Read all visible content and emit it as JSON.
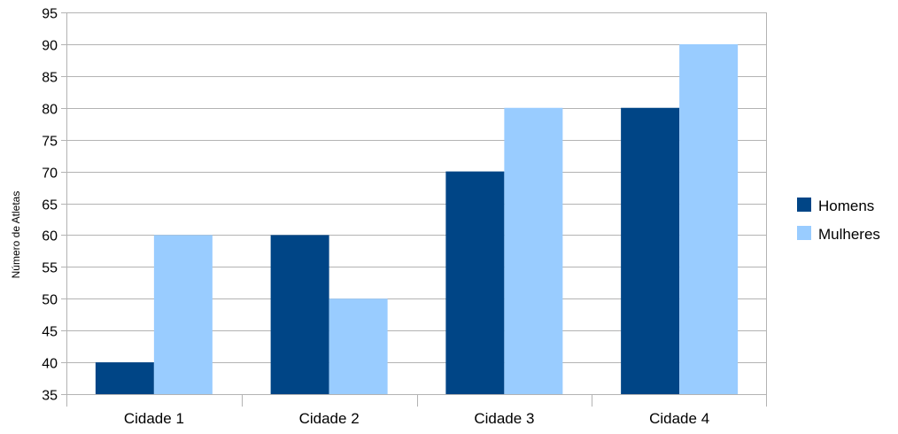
{
  "chart_data": {
    "type": "bar",
    "categories": [
      "Cidade 1",
      "Cidade 2",
      "Cidade 3",
      "Cidade 4"
    ],
    "series": [
      {
        "name": "Homens",
        "values": [
          40,
          60,
          70,
          80
        ],
        "color": "#004586"
      },
      {
        "name": "Mulheres",
        "values": [
          60,
          50,
          80,
          90
        ],
        "color": "#99ccff"
      }
    ],
    "ylabel": "Número de Atletas",
    "xlabel": "",
    "ylim": [
      35,
      95
    ],
    "yticks": [
      35,
      40,
      45,
      50,
      55,
      60,
      65,
      70,
      75,
      80,
      85,
      90,
      95
    ],
    "grid": true,
    "legend_position": "right"
  }
}
